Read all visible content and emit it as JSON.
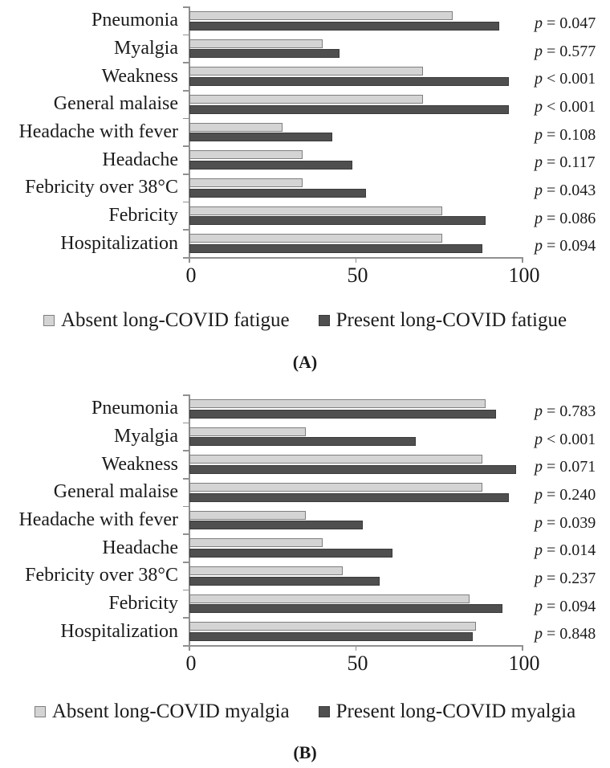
{
  "figure": {
    "background": "#ffffff"
  },
  "colors": {
    "absent_fill": "#d4d4d4",
    "absent_border": "#7f7f7f",
    "present_fill": "#4f4f4f",
    "present_border": "#3a3a3a",
    "axis": "#909090",
    "text": "#1b1b1b"
  },
  "p_symbol": "p",
  "chart_data": [
    {
      "id": "A",
      "type": "bar",
      "orientation": "horizontal",
      "title": "",
      "categories": [
        "Pneumonia",
        "Myalgia",
        "Weakness",
        "General malaise",
        "Headache with fever",
        "Headache",
        "Febricity over 38°C",
        "Febricity",
        "Hospitalization"
      ],
      "series": [
        {
          "name": "Absent long-COVID fatigue",
          "values": [
            79,
            40,
            70,
            70,
            28,
            34,
            34,
            76,
            76
          ]
        },
        {
          "name": "Present long-COVID fatigue",
          "values": [
            93,
            45,
            96,
            96,
            43,
            49,
            53,
            89,
            88
          ]
        }
      ],
      "p_values": [
        "= 0.047",
        "= 0.577",
        "< 0.001",
        "< 0.001",
        "= 0.108",
        "= 0.117",
        "= 0.043",
        "= 0.086",
        "= 0.094"
      ],
      "xlim": [
        0,
        100
      ],
      "x_ticks": [
        0,
        50,
        100
      ],
      "grid": false,
      "legend_position": "bottom",
      "caption": "(A)"
    },
    {
      "id": "B",
      "type": "bar",
      "orientation": "horizontal",
      "title": "",
      "categories": [
        "Pneumonia",
        "Myalgia",
        "Weakness",
        "General malaise",
        "Headache with fever",
        "Headache",
        "Febricity over 38°C",
        "Febricity",
        "Hospitalization"
      ],
      "series": [
        {
          "name": "Absent long-COVID myalgia",
          "values": [
            89,
            35,
            88,
            88,
            35,
            40,
            46,
            84,
            86
          ]
        },
        {
          "name": "Present long-COVID myalgia",
          "values": [
            92,
            68,
            98,
            96,
            52,
            61,
            57,
            94,
            85
          ]
        }
      ],
      "p_values": [
        "= 0.783",
        "< 0.001",
        "= 0.071",
        "= 0.240",
        "= 0.039",
        "= 0.014",
        "= 0.237",
        "= 0.094",
        "= 0.848"
      ],
      "xlim": [
        0,
        100
      ],
      "x_ticks": [
        0,
        50,
        100
      ],
      "grid": false,
      "legend_position": "bottom",
      "caption": "(B)"
    }
  ]
}
